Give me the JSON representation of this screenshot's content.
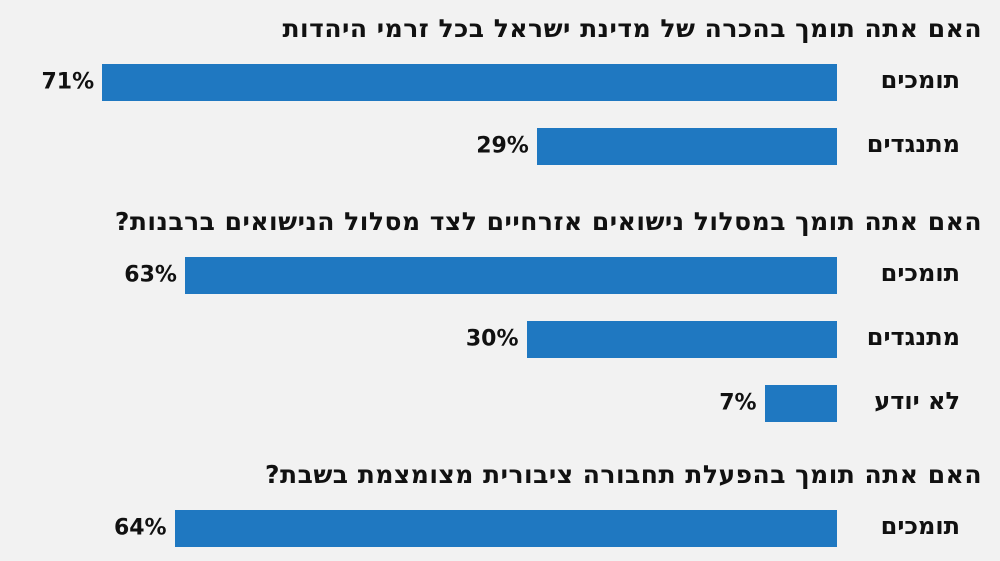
{
  "chart_data": {
    "type": "bar",
    "orientation": "horizontal",
    "bar_color": "#1f78c1",
    "background": "#f2f2f2",
    "value_suffix": "%",
    "groups": [
      {
        "title": "האם אתה תומך בהכרה של מדינת ישראל בכל זרמי היהדות",
        "categories": [
          "תומכים",
          "מתנגדים"
        ],
        "values": [
          71,
          29
        ]
      },
      {
        "title": "האם אתה תומך במסלול נישואים אזרחיים לצד מסלול הנישואים ברבנות?",
        "categories": [
          "תומכים",
          "מתנגדים",
          "לא יודע"
        ],
        "values": [
          63,
          30,
          7
        ]
      },
      {
        "title": "האם אתה תומך בהפעלת תחבורה ציבורית מצומצמת בשבת?",
        "categories": [
          "תומכים"
        ],
        "values": [
          64
        ]
      }
    ]
  }
}
